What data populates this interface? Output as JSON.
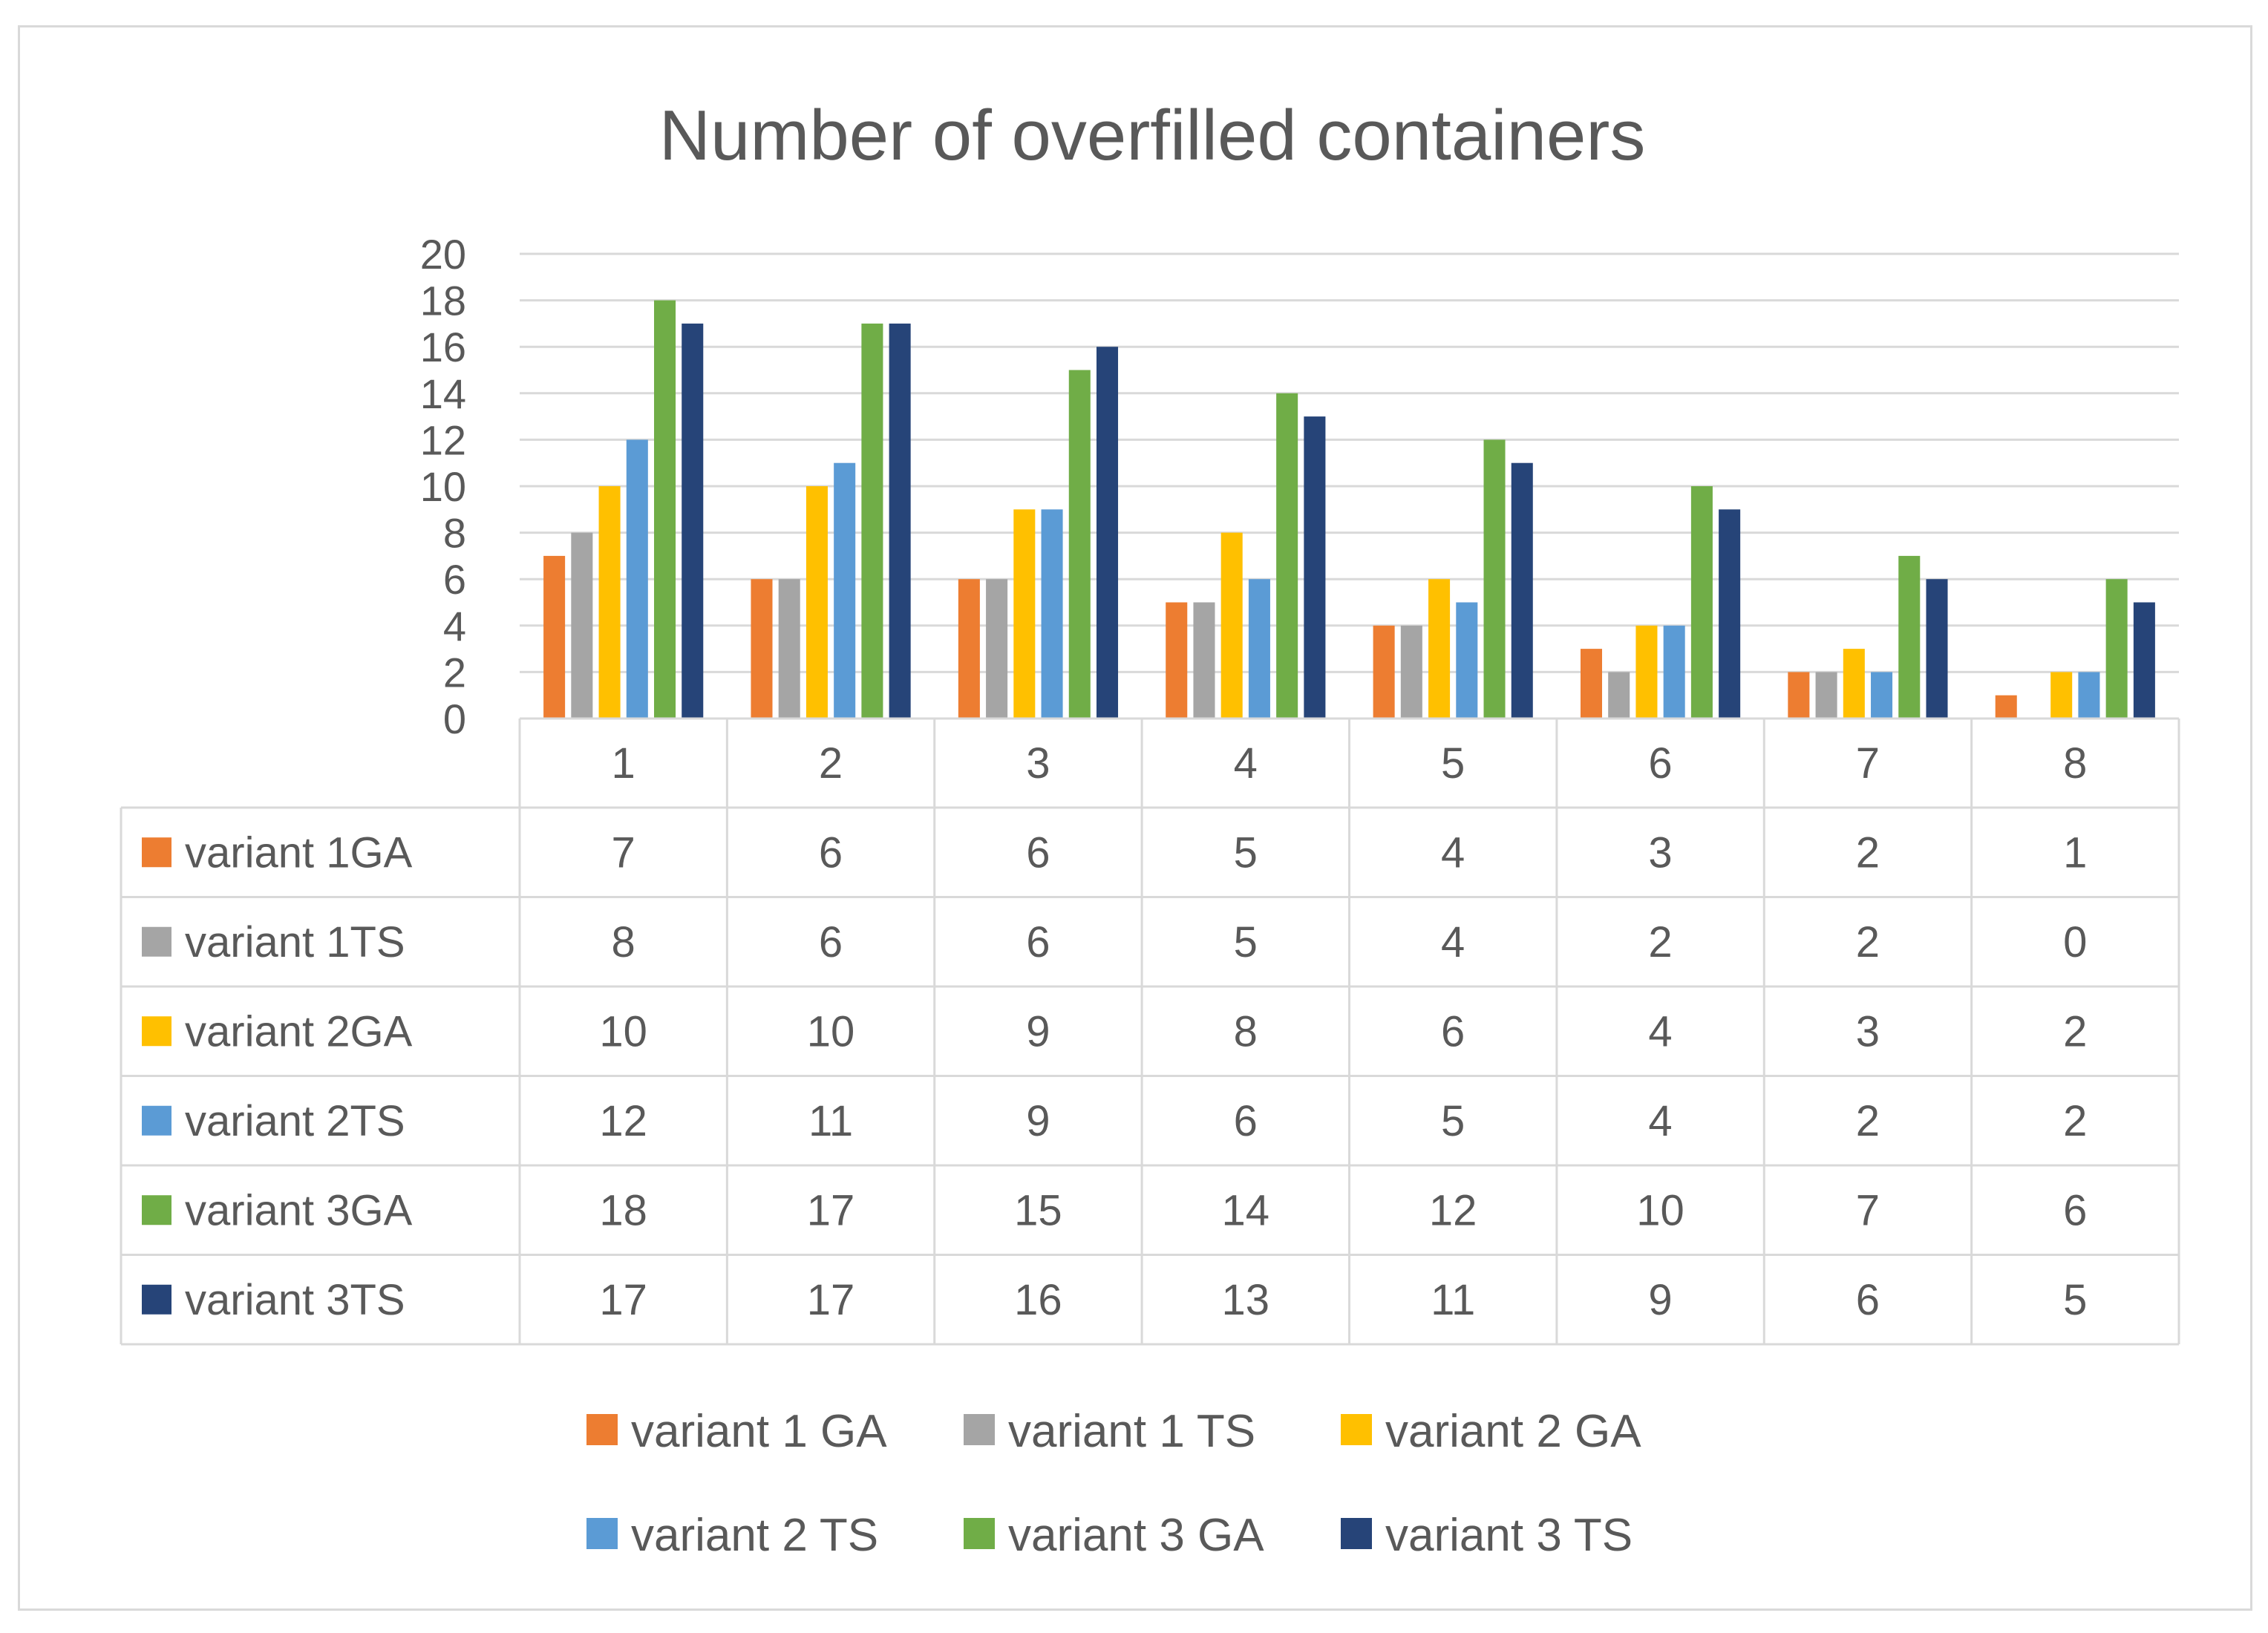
{
  "chart_data": {
    "type": "bar",
    "title": "Number of overfilled containers",
    "xlabel": "",
    "ylabel": "",
    "ylim": [
      0,
      20
    ],
    "ytick_step": 2,
    "grid": true,
    "legend_position": "bottom",
    "categories": [
      "1",
      "2",
      "3",
      "4",
      "5",
      "6",
      "7",
      "8"
    ],
    "series": [
      {
        "name": "variant 1 GA",
        "table_label": "variant 1GA",
        "color": "#ED7D31",
        "values": [
          7,
          6,
          6,
          5,
          4,
          3,
          2,
          1
        ]
      },
      {
        "name": "variant 1 TS",
        "table_label": "variant 1TS",
        "color": "#A5A5A5",
        "values": [
          8,
          6,
          6,
          5,
          4,
          2,
          2,
          0
        ]
      },
      {
        "name": "variant 2 GA",
        "table_label": "variant 2GA",
        "color": "#FFC000",
        "values": [
          10,
          10,
          9,
          8,
          6,
          4,
          3,
          2
        ]
      },
      {
        "name": "variant 2 TS",
        "table_label": "variant 2TS",
        "color": "#5B9BD5",
        "values": [
          12,
          11,
          9,
          6,
          5,
          4,
          2,
          2
        ]
      },
      {
        "name": "variant 3 GA",
        "table_label": "variant 3GA",
        "color": "#70AD47",
        "values": [
          18,
          17,
          15,
          14,
          12,
          10,
          7,
          6
        ]
      },
      {
        "name": "variant 3 TS",
        "table_label": "variant 3TS",
        "color": "#264478",
        "values": [
          17,
          17,
          16,
          13,
          11,
          9,
          6,
          5
        ]
      }
    ]
  }
}
